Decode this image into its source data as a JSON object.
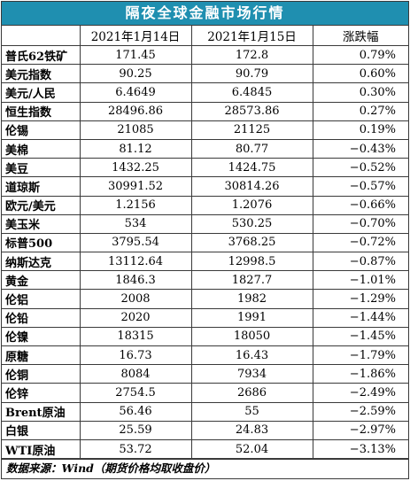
{
  "title": "隔夜全球金融市场行情",
  "headers": [
    "",
    "2021年1月14日",
    "2021年1月15日",
    "涨跌幅"
  ],
  "rows": [
    {
      "name": "普氏62铁矿",
      "v1": "171.45",
      "v2": "172.8",
      "chg": "0.79%"
    },
    {
      "name": "美元指数",
      "v1": "90.25",
      "v2": "90.79",
      "chg": "0.60%"
    },
    {
      "name": "美元/人民",
      "v1": "6.4649",
      "v2": "6.4845",
      "chg": "0.30%"
    },
    {
      "name": "恒生指数",
      "v1": "28496.86",
      "v2": "28573.86",
      "chg": "0.27%"
    },
    {
      "name": "伦锡",
      "v1": "21085",
      "v2": "21125",
      "chg": "0.19%"
    },
    {
      "name": "美棉",
      "v1": "81.12",
      "v2": "80.77",
      "chg": "−0.43%"
    },
    {
      "name": "美豆",
      "v1": "1432.25",
      "v2": "1424.75",
      "chg": "−0.52%"
    },
    {
      "name": "道琼斯",
      "v1": "30991.52",
      "v2": "30814.26",
      "chg": "−0.57%"
    },
    {
      "name": "欧元/美元",
      "v1": "1.2156",
      "v2": "1.2076",
      "chg": "−0.66%"
    },
    {
      "name": "美玉米",
      "v1": "534",
      "v2": "530.25",
      "chg": "−0.70%"
    },
    {
      "name": "标普500",
      "v1": "3795.54",
      "v2": "3768.25",
      "chg": "−0.72%"
    },
    {
      "name": "纳斯达克",
      "v1": "13112.64",
      "v2": "12998.5",
      "chg": "−0.87%"
    },
    {
      "name": "黄金",
      "v1": "1846.3",
      "v2": "1827.7",
      "chg": "−1.01%"
    },
    {
      "name": "伦铝",
      "v1": "2008",
      "v2": "1982",
      "chg": "−1.29%"
    },
    {
      "name": "伦铅",
      "v1": "2020",
      "v2": "1991",
      "chg": "−1.44%"
    },
    {
      "name": "伦镍",
      "v1": "18315",
      "v2": "18050",
      "chg": "−1.45%"
    },
    {
      "name": "原糖",
      "v1": "16.73",
      "v2": "16.43",
      "chg": "−1.79%"
    },
    {
      "name": "伦铜",
      "v1": "8084",
      "v2": "7934",
      "chg": "−1.86%"
    },
    {
      "name": "伦锌",
      "v1": "2754.5",
      "v2": "2686",
      "chg": "−2.49%"
    },
    {
      "name": "Brent原油",
      "v1": "56.46",
      "v2": "55",
      "chg": "−2.59%"
    },
    {
      "name": "白银",
      "v1": "25.59",
      "v2": "24.83",
      "chg": "−2.97%"
    },
    {
      "name": "WTI原油",
      "v1": "53.72",
      "v2": "52.04",
      "chg": "−3.13%"
    }
  ],
  "footer": "数据来源：Wind（期货价格均取收盘价）",
  "colors": {
    "title_bg": "#1f8fb0",
    "title_text": "#ffffff",
    "border": "#3a3a3a"
  }
}
